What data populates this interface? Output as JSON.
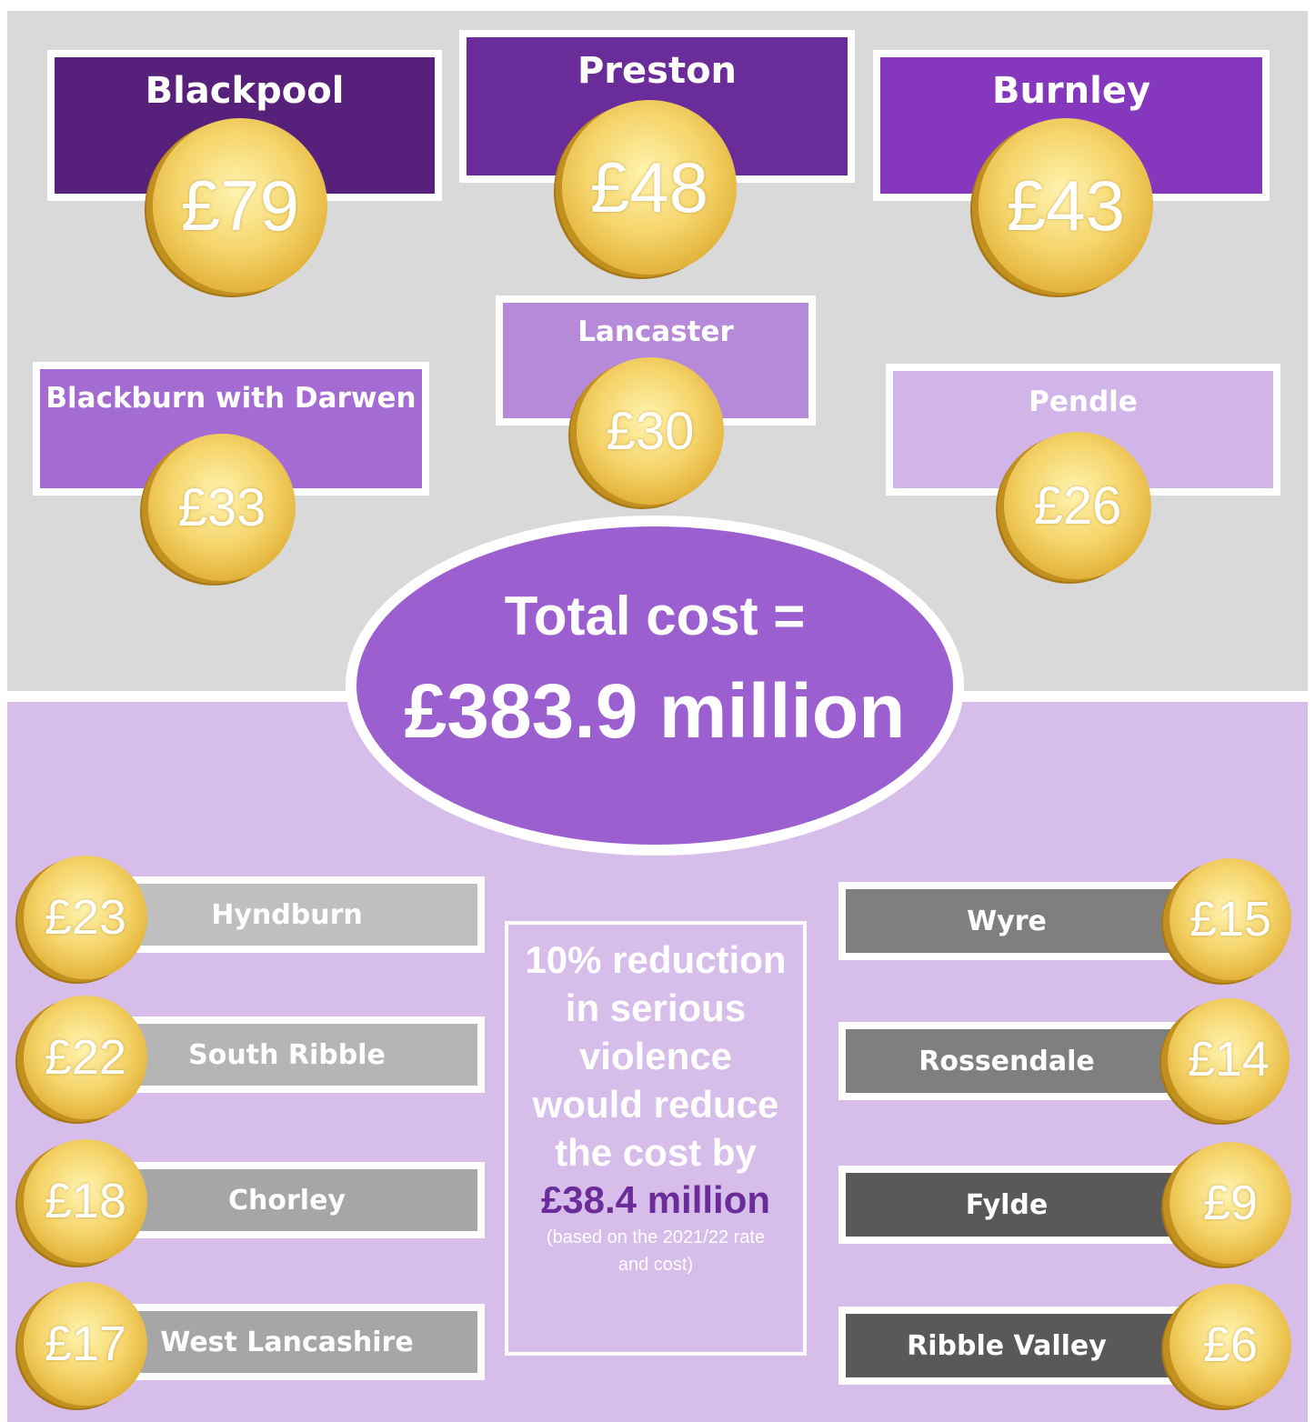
{
  "top_areas": [
    {
      "name": "Blackpool",
      "amount": "£79"
    },
    {
      "name": "Preston",
      "amount": "£48"
    },
    {
      "name": "Burnley",
      "amount": "£43"
    },
    {
      "name": "Blackburn with Darwen",
      "amount": "£33"
    },
    {
      "name": "Lancaster",
      "amount": "£30"
    },
    {
      "name": "Pendle",
      "amount": "£26"
    }
  ],
  "total": {
    "label": "Total cost =",
    "amount": "£383.9 million"
  },
  "left_areas": [
    {
      "name": "Hyndburn",
      "amount": "£23"
    },
    {
      "name": "South Ribble",
      "amount": "£22"
    },
    {
      "name": "Chorley",
      "amount": "£18"
    },
    {
      "name": "West Lancashire",
      "amount": "£17"
    }
  ],
  "right_areas": [
    {
      "name": "Wyre",
      "amount": "£15"
    },
    {
      "name": "Rossendale",
      "amount": "£14"
    },
    {
      "name": "Fylde",
      "amount": "£9"
    },
    {
      "name": "Ribble Valley",
      "amount": "£6"
    }
  ],
  "note": {
    "text": "10% reduction in serious violence would reduce the cost by",
    "amount": "£38.4 million",
    "footnote": "(based on the 2021/22 rate and cost)"
  }
}
